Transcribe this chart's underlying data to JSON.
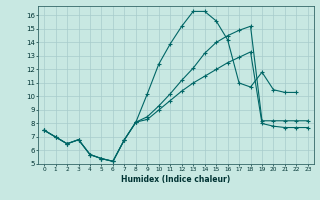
{
  "bg_color": "#c8e8e2",
  "grid_color": "#a8cccc",
  "line_color": "#006666",
  "xlabel": "Humidex (Indice chaleur)",
  "xlim": [
    -0.5,
    23.5
  ],
  "ylim": [
    5,
    16.7
  ],
  "series_a_x": [
    0,
    1,
    2,
    3,
    4,
    5,
    6,
    7,
    8,
    9,
    10,
    11,
    12,
    13,
    14,
    15,
    16,
    17,
    18,
    19,
    20,
    21,
    22
  ],
  "series_a_y": [
    7.5,
    7.0,
    6.5,
    6.8,
    5.7,
    5.4,
    5.2,
    6.8,
    8.1,
    10.2,
    12.4,
    13.9,
    15.2,
    16.3,
    16.3,
    15.6,
    14.2,
    11.0,
    10.7,
    11.8,
    10.5,
    10.3,
    10.3
  ],
  "series_b_x": [
    0,
    1,
    2,
    3,
    4,
    5,
    6,
    7,
    8,
    9,
    10,
    11,
    12,
    13,
    14,
    15,
    16,
    17,
    18,
    19,
    20,
    21,
    22,
    23
  ],
  "series_b_y": [
    7.5,
    7.0,
    6.5,
    6.8,
    5.7,
    5.4,
    5.2,
    6.8,
    8.1,
    8.5,
    9.3,
    10.2,
    11.2,
    12.1,
    13.2,
    14.0,
    14.5,
    14.9,
    15.2,
    8.2,
    8.2,
    8.2,
    8.2,
    8.2
  ],
  "series_c_x": [
    0,
    1,
    2,
    3,
    4,
    5,
    6,
    7,
    8,
    9,
    10,
    11,
    12,
    13,
    14,
    15,
    16,
    17,
    18,
    19,
    20,
    21,
    22,
    23
  ],
  "series_c_y": [
    7.5,
    7.0,
    6.5,
    6.8,
    5.7,
    5.4,
    5.2,
    6.8,
    8.1,
    8.3,
    9.0,
    9.7,
    10.4,
    11.0,
    11.5,
    12.0,
    12.5,
    12.9,
    13.3,
    8.0,
    7.8,
    7.7,
    7.7,
    7.7
  ]
}
